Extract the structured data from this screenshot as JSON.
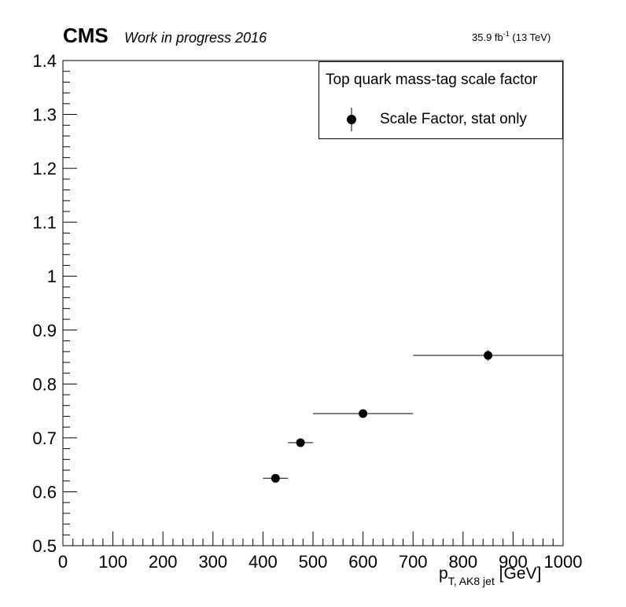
{
  "header": {
    "experiment": "CMS",
    "status": "Work in progress 2016",
    "lumi_value": "35.9 fb",
    "lumi_exponent": "-1",
    "energy": " (13 TeV)"
  },
  "legend": {
    "title": "Top quark mass-tag scale factor",
    "entry": "Scale Factor, stat only",
    "placement": "top-right"
  },
  "axis": {
    "x_symbol": "p",
    "x_subscript": "T, AK8 jet",
    "x_unit": " [GeV]"
  },
  "chart_data": {
    "type": "scatter",
    "xlim": [
      0,
      1000
    ],
    "ylim": [
      0.5,
      1.4
    ],
    "x_ticks": [
      0,
      100,
      200,
      300,
      400,
      500,
      600,
      700,
      800,
      900,
      1000
    ],
    "x_tick_labels": [
      "0",
      "100",
      "200",
      "300",
      "400",
      "500",
      "600",
      "700",
      "800",
      "900",
      "1000"
    ],
    "y_ticks": [
      0.5,
      0.6,
      0.7,
      0.8,
      0.9,
      1.0,
      1.1,
      1.2,
      1.3,
      1.4
    ],
    "y_tick_labels": [
      "0.5",
      "0.6",
      "0.7",
      "0.8",
      "0.9",
      "1",
      "1.1",
      "1.2",
      "1.3",
      "1.4"
    ],
    "grid": false,
    "series": [
      {
        "name": "Scale Factor, stat only",
        "color": "#000000",
        "points": [
          {
            "x": 425,
            "xlow": 400,
            "xhigh": 450,
            "y": 0.625,
            "yerr": 0.006
          },
          {
            "x": 475,
            "xlow": 450,
            "xhigh": 500,
            "y": 0.691,
            "yerr": 0.006
          },
          {
            "x": 600,
            "xlow": 500,
            "xhigh": 700,
            "y": 0.745,
            "yerr": 0.005
          },
          {
            "x": 850,
            "xlow": 700,
            "xhigh": 1000,
            "y": 0.853,
            "yerr": 0.01
          }
        ]
      }
    ]
  }
}
